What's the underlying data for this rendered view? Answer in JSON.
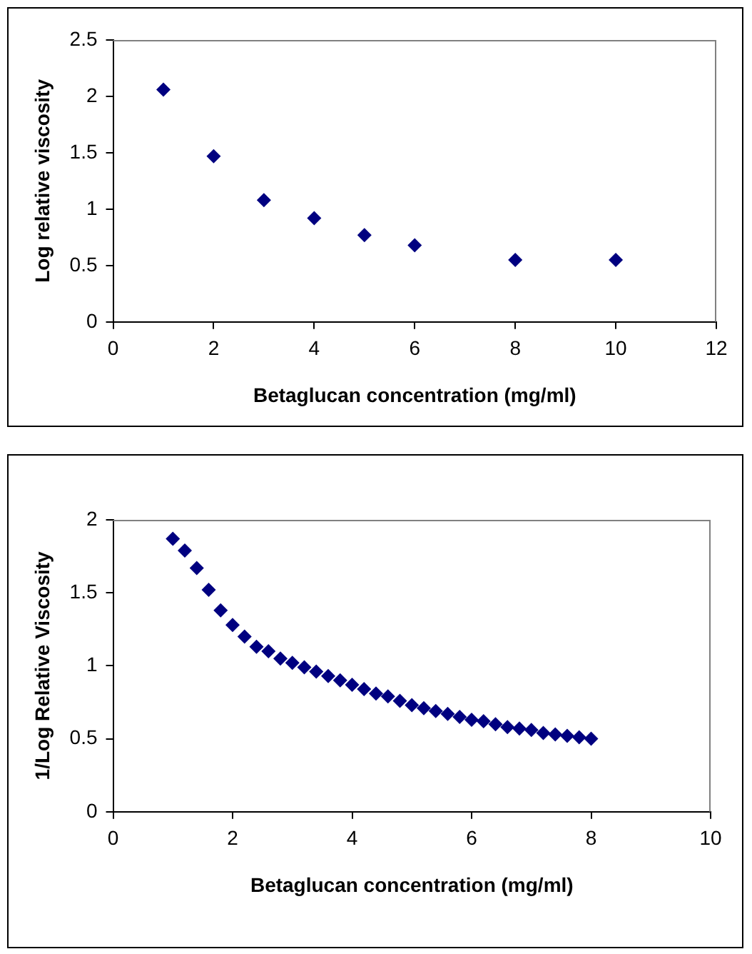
{
  "chart_data": [
    {
      "type": "scatter",
      "xlabel": "Betaglucan concentration (mg/ml)",
      "ylabel": "Log relative viscosity",
      "x": [
        1,
        2,
        3,
        4,
        5,
        6,
        8,
        10
      ],
      "series": [
        {
          "color": "#000080",
          "values": [
            2.06,
            1.47,
            1.08,
            0.92,
            0.77,
            0.68,
            0.55,
            0.55
          ]
        }
      ],
      "xlim": [
        0,
        12
      ],
      "xticks": [
        0,
        2,
        4,
        6,
        8,
        10,
        12
      ],
      "ylim": [
        0,
        2.5
      ],
      "yticks": [
        0,
        0.5,
        1,
        1.5,
        2,
        2.5
      ],
      "grid": false,
      "legend": false,
      "marker": "diamond"
    },
    {
      "type": "scatter",
      "xlabel": "Betaglucan concentration (mg/ml)",
      "ylabel": "1/Log Relative Viscosity",
      "x": [
        1,
        1.2,
        1.4,
        1.6,
        1.8,
        2,
        2.2,
        2.4,
        2.6,
        2.8,
        3,
        3.2,
        3.4,
        3.6,
        3.8,
        4,
        4.2,
        4.4,
        4.6,
        4.8,
        5,
        5.2,
        5.4,
        5.6,
        5.8,
        6,
        6.2,
        6.4,
        6.6,
        6.8,
        7,
        7.2,
        7.4,
        7.6,
        7.8,
        8
      ],
      "series": [
        {
          "color": "#000080",
          "values": [
            1.87,
            1.79,
            1.67,
            1.52,
            1.38,
            1.28,
            1.2,
            1.13,
            1.1,
            1.05,
            1.02,
            0.99,
            0.96,
            0.93,
            0.9,
            0.87,
            0.84,
            0.81,
            0.79,
            0.76,
            0.73,
            0.71,
            0.69,
            0.67,
            0.65,
            0.63,
            0.62,
            0.6,
            0.58,
            0.57,
            0.56,
            0.54,
            0.53,
            0.52,
            0.51,
            0.5
          ]
        }
      ],
      "xlim": [
        0,
        10
      ],
      "xticks": [
        0,
        2,
        4,
        6,
        8,
        10
      ],
      "ylim": [
        0,
        2
      ],
      "yticks": [
        0,
        0.5,
        1,
        1.5,
        2
      ],
      "grid": false,
      "legend": false,
      "marker": "diamond"
    }
  ]
}
